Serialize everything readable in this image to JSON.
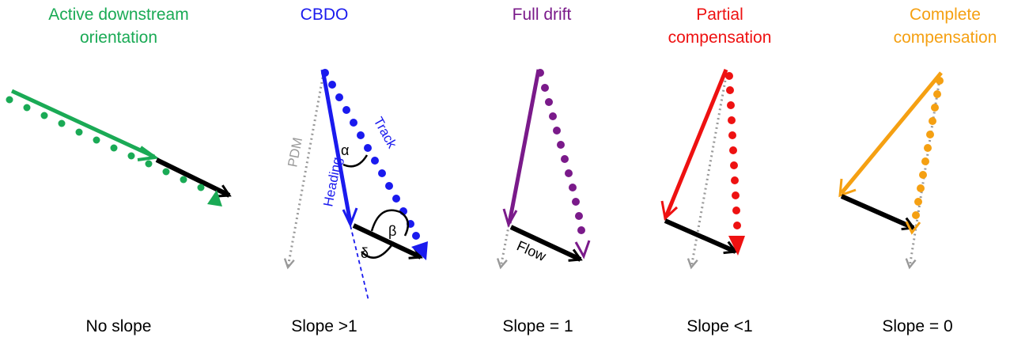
{
  "panels": [
    {
      "title_lines": [
        "Active downstream",
        "orientation"
      ],
      "slope": "No slope",
      "color": "#1aaa55"
    },
    {
      "title_lines": [
        "CBDO"
      ],
      "slope": "Slope >1",
      "color": "#1a1aee"
    },
    {
      "title_lines": [
        "Full drift"
      ],
      "slope": "Slope = 1",
      "color": "#7a1a8a"
    },
    {
      "title_lines": [
        "Partial",
        "compensation"
      ],
      "slope": "Slope <1",
      "color": "#ee1111"
    },
    {
      "title_lines": [
        "Complete",
        "compensation"
      ],
      "slope": "Slope = 0",
      "color": "#f5a012"
    }
  ],
  "labels": {
    "pdm": "PDM",
    "heading": "Heading",
    "track": "Track",
    "alpha": "α",
    "beta": "β",
    "delta": "δ",
    "flow": "Flow"
  },
  "colors": {
    "flow": "#000000",
    "pdm": "#999999"
  }
}
